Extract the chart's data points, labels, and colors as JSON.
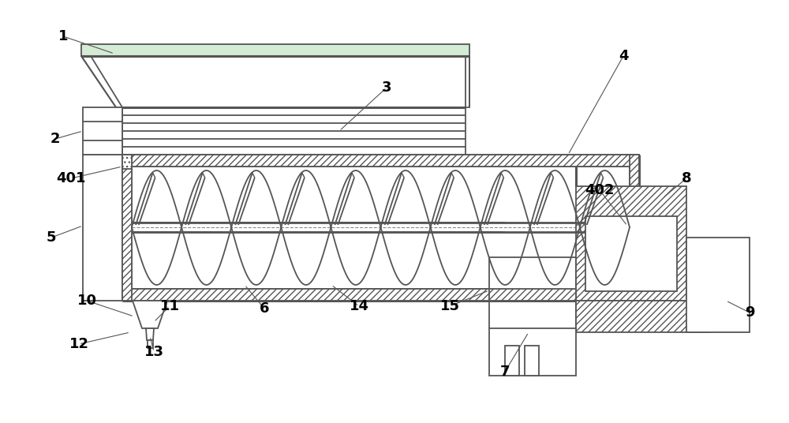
{
  "bg_color": "#ffffff",
  "lc": "#555555",
  "lw": 1.3,
  "tlw": 2.2,
  "green_fill": "#d4ecd4",
  "hatch_fc": "#ffffff",
  "figsize": [
    10.0,
    5.36
  ],
  "dpi": 100
}
